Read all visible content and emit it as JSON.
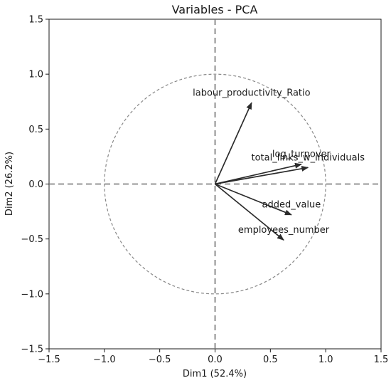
{
  "chart_data": {
    "type": "scatter",
    "title": "Variables - PCA",
    "xlabel": "Dim1 (52.4%)",
    "ylabel": "Dim2 (26.2%)",
    "xlim": [
      -1.5,
      1.5
    ],
    "ylim": [
      -1.5,
      1.5
    ],
    "xticks": [
      "−1.5",
      "−1.0",
      "−0.5",
      "0.0",
      "0.5",
      "1.0",
      "1.5"
    ],
    "yticks": [
      "−1.5",
      "−1.0",
      "−0.5",
      "0.0",
      "0.5",
      "1.0",
      "1.5"
    ],
    "grid": false,
    "unit_circle": true,
    "vectors": [
      {
        "label": "labour_productivity_Ratio",
        "x": 0.33,
        "y": 0.74
      },
      {
        "label": "log_turnover",
        "x": 0.78,
        "y": 0.18
      },
      {
        "label": "total_links_w_individuals",
        "x": 0.84,
        "y": 0.15
      },
      {
        "label": "added_value",
        "x": 0.69,
        "y": -0.28
      },
      {
        "label": "employees_number",
        "x": 0.62,
        "y": -0.51
      }
    ]
  }
}
